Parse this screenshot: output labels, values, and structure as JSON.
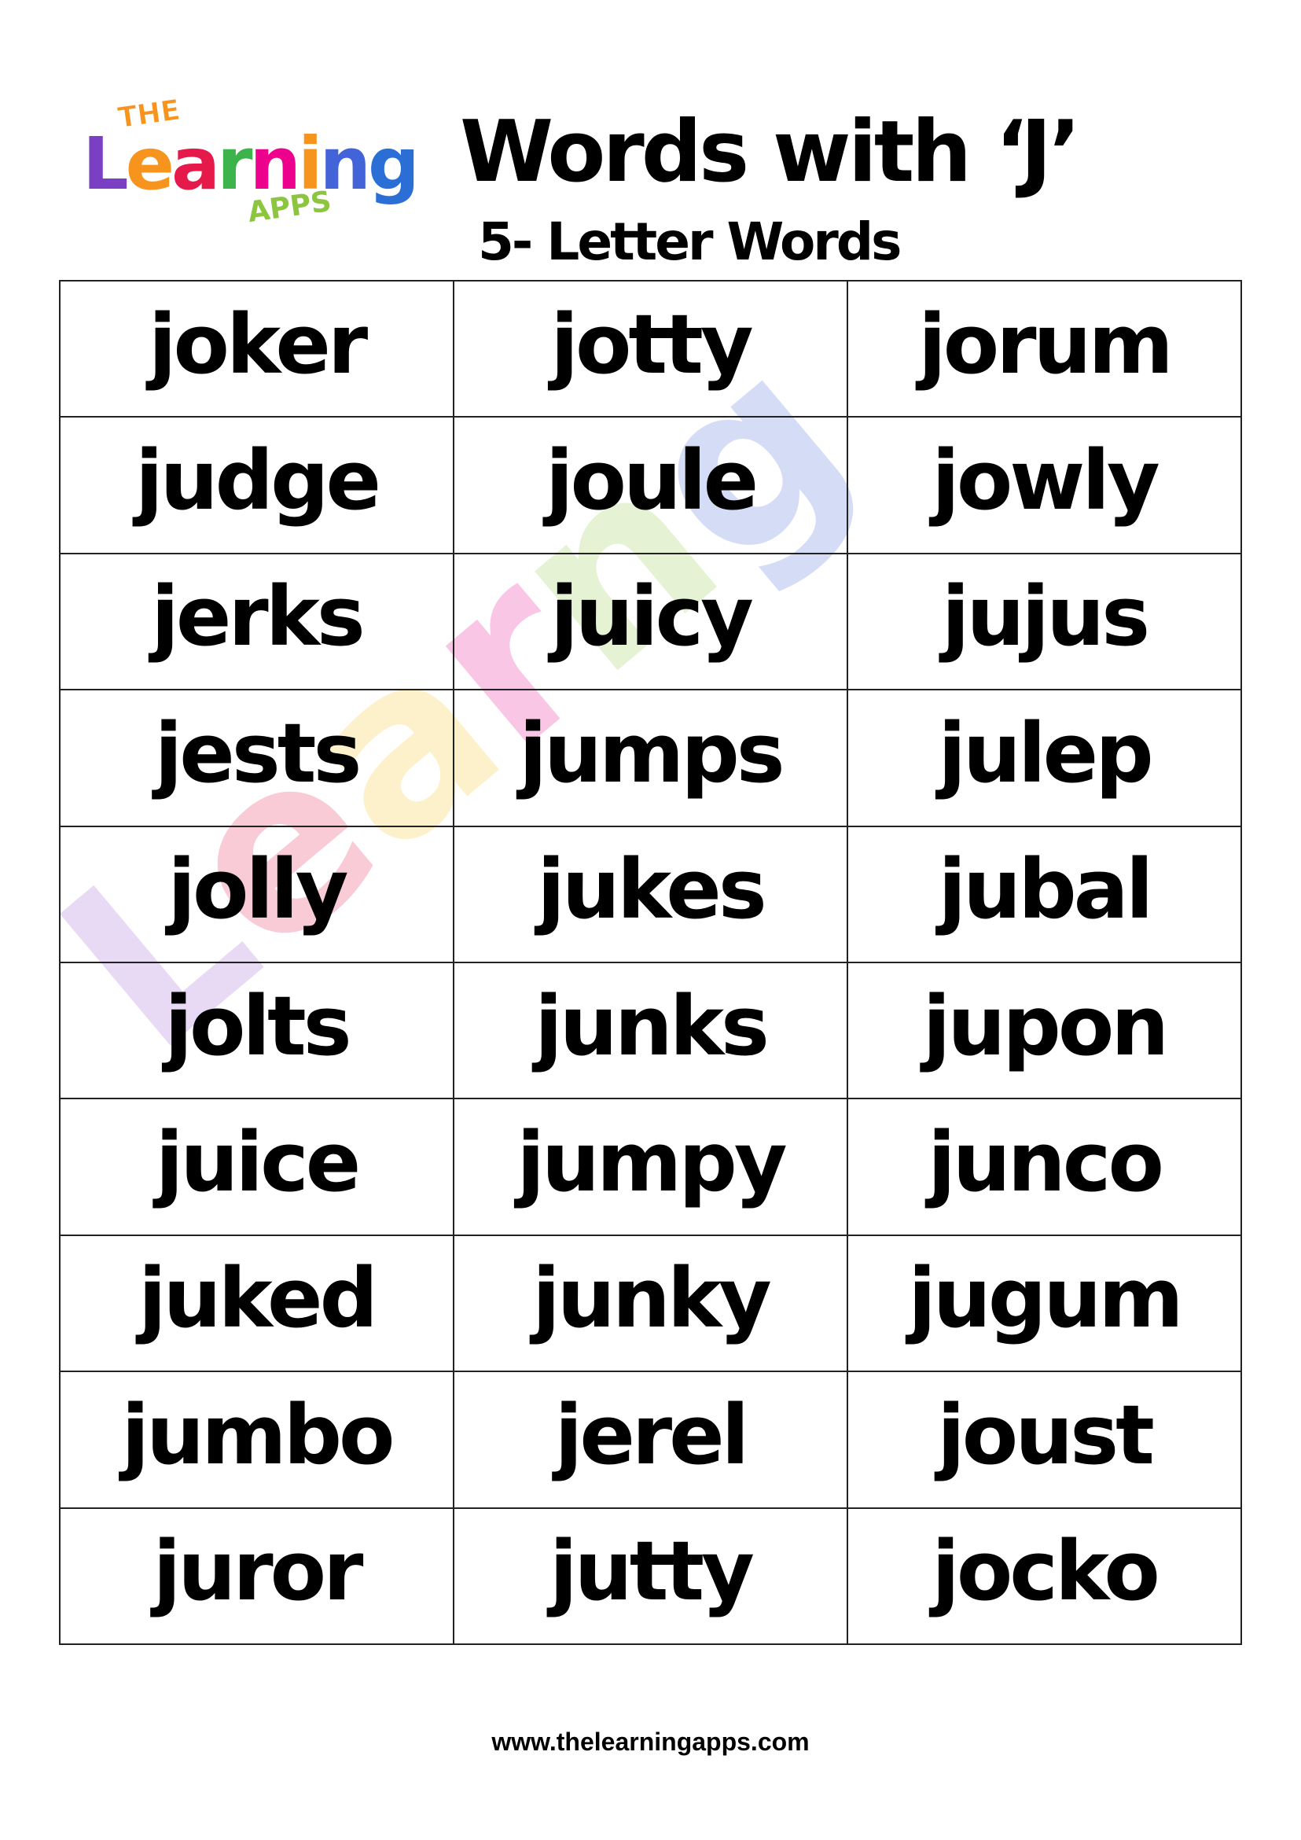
{
  "logo": {
    "text_top": "THE",
    "text_main": "Learning",
    "text_bottom": "APPS"
  },
  "header": {
    "title": "Words with ‘J’",
    "subtitle": "5- Letter Words"
  },
  "words": [
    [
      "joker",
      "jotty",
      "jorum"
    ],
    [
      "judge",
      "joule",
      "jowly"
    ],
    [
      "jerks",
      "juicy",
      "jujus"
    ],
    [
      "jests",
      "jumps",
      "julep"
    ],
    [
      "jolly",
      "jukes",
      "jubal"
    ],
    [
      "jolts",
      "junks",
      "jupon"
    ],
    [
      "juice",
      "jumpy",
      "junco"
    ],
    [
      "juked",
      "junky",
      "jugum"
    ],
    [
      "jumbo",
      "jerel",
      "joust"
    ],
    [
      "juror",
      "jutty",
      "jocko"
    ]
  ],
  "footer": {
    "url": "www.thelearningapps.com"
  },
  "colors": {
    "logo_letters": [
      "#7b3fc4",
      "#f7941d",
      "#e6194b",
      "#3cb44b",
      "#ec008c",
      "#f7941d",
      "#4363d8",
      "#2b6fd6"
    ]
  }
}
